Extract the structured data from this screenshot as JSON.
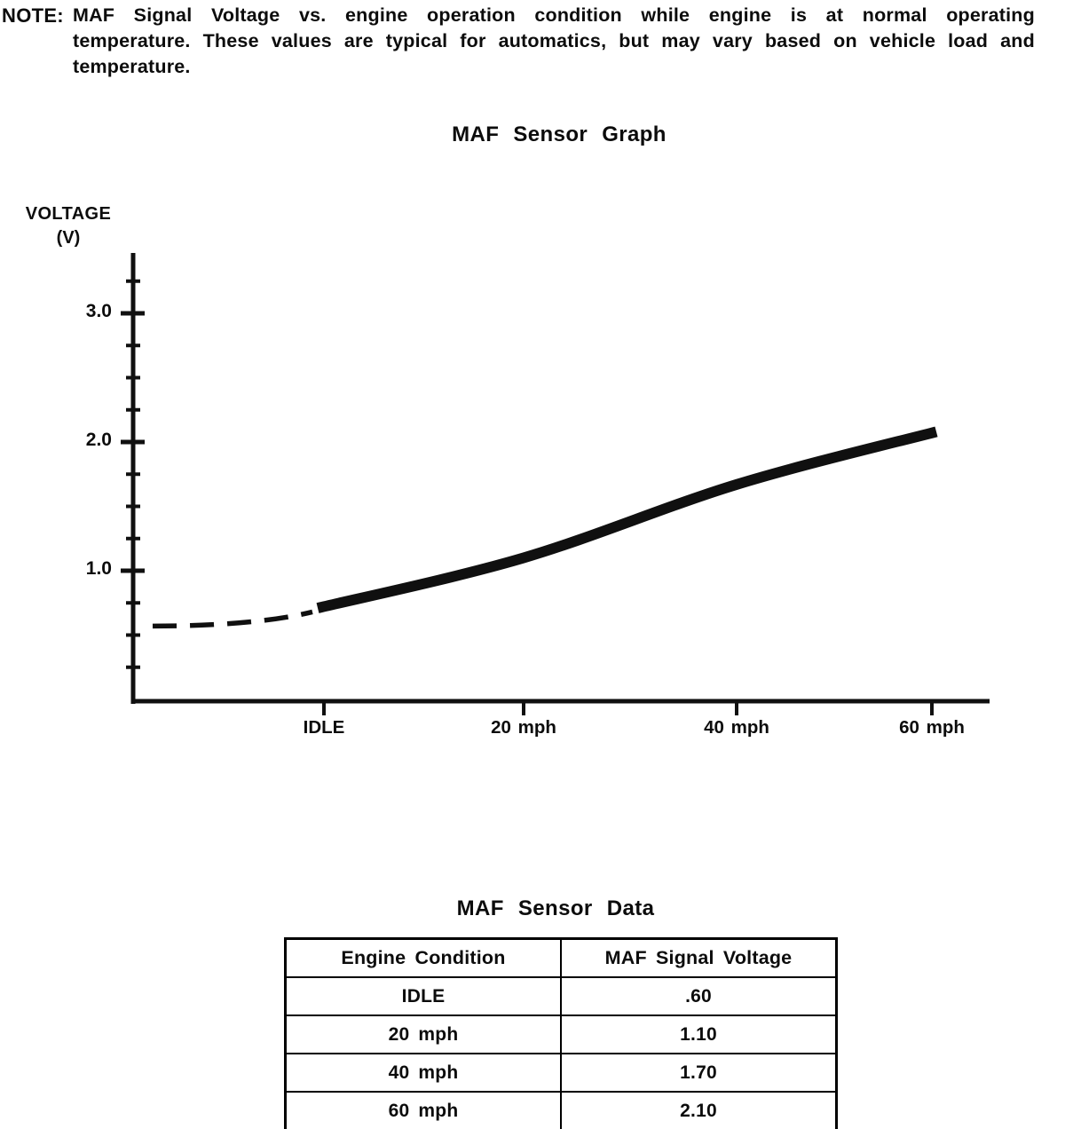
{
  "note": {
    "label": "NOTE:",
    "text": "MAF Signal Voltage vs. engine operation condition while engine is at normal operating temperature. These values are typical for automatics, but may vary based on vehicle load and temperature."
  },
  "graph": {
    "title": "MAF Sensor Graph",
    "y_axis_label": "VOLTAGE",
    "y_axis_unit": "(V)",
    "y_tick_labels": [
      "3.0",
      "2.0",
      "1.0"
    ],
    "x_tick_labels": [
      "IDLE",
      "20 mph",
      "40 mph",
      "60 mph"
    ]
  },
  "chart_data": {
    "type": "line",
    "title": "MAF Sensor Graph",
    "xlabel": "",
    "ylabel": "VOLTAGE (V)",
    "categories": [
      "IDLE",
      "20 mph",
      "40 mph",
      "60 mph"
    ],
    "values": [
      0.6,
      1.1,
      1.7,
      2.1
    ],
    "ylim": [
      0,
      3.5
    ],
    "y_ticks": [
      1.0,
      2.0,
      3.0
    ],
    "minor_tick_step": 0.25,
    "grid": false,
    "legend": false,
    "line_color": "#101010",
    "line_style": "thick solid curve from IDLE to 60 mph, dashed lead-in segment before IDLE",
    "dashed_leadin_start_value": 0.57
  },
  "table": {
    "title": "MAF Sensor Data",
    "headers": [
      "Engine Condition",
      "MAF Signal Voltage"
    ],
    "rows": [
      {
        "condition": "IDLE",
        "voltage": ".60"
      },
      {
        "condition": "20 mph",
        "voltage": "1.10"
      },
      {
        "condition": "40 mph",
        "voltage": "1.70"
      },
      {
        "condition": "60 mph",
        "voltage": "2.10"
      }
    ]
  }
}
